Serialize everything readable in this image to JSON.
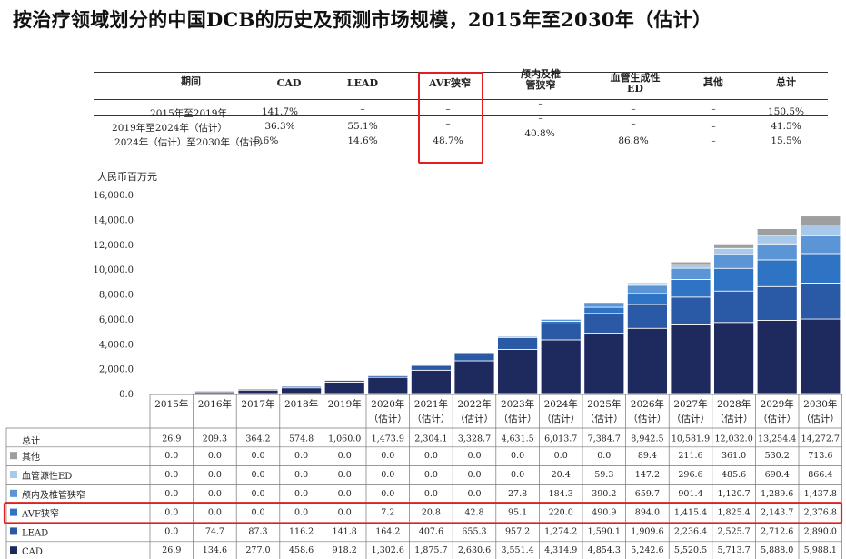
{
  "title": "按治疗领域划分的中国DCB的历史及预测市场规模，2015年至2030年（估计）",
  "cagr_table": {
    "header": [
      "期间",
      "CAD",
      "LEAD",
      "AVF狭窄",
      "颅内及椎管狭窄",
      "血管生成性ED",
      "其他",
      "总计"
    ],
    "rows": [
      {
        "period": "2015年至2019年",
        "values": [
          "141.7%",
          "–",
          "–",
          "–",
          "–",
          "–",
          "150.5%"
        ]
      },
      {
        "period": "2019年至2024年（估计）",
        "values": [
          "36.3%",
          "55.1%",
          "–",
          "–",
          "–",
          "–",
          "41.5%"
        ]
      },
      {
        "period": "2024年（估计）至2030年（估计）",
        "values": [
          "5.6%",
          "14.6%",
          "48.7%",
          "40.8%",
          "86.8%",
          "–",
          "15.5%"
        ]
      }
    ]
  },
  "colors": {
    "CAD": "#1e2a5e",
    "LEAD": "#2a5aa6",
    "AVF": "#2f73c4",
    "intracranial": "#5b95d6",
    "ED": "#a9c9ea",
    "other": "#9e9e9e",
    "highlight": "#e02020"
  },
  "chart_data": {
    "type": "bar",
    "stacked": true,
    "title": "",
    "ylabel": "人民币百万元",
    "ylim": [
      0,
      16000
    ],
    "yticks": [
      "0.0",
      "2,000.0",
      "4,000.0",
      "6,000.0",
      "8,000.0",
      "10,000.0",
      "12,000.0",
      "14,000.0",
      "16,000.0"
    ],
    "ytick_values": [
      0,
      2000,
      4000,
      6000,
      8000,
      10000,
      12000,
      14000,
      16000
    ],
    "categories": [
      "2015年",
      "2016年",
      "2017年",
      "2018年",
      "2019年",
      "2020年",
      "2021年",
      "2022年",
      "2023年",
      "2024年",
      "2025年",
      "2026年",
      "2027年",
      "2028年",
      "2029年",
      "2030年"
    ],
    "category_sub": [
      "",
      "",
      "",
      "",
      "",
      "（估计）",
      "（估计）",
      "（估计）",
      "（估计）",
      "（估计）",
      "（估计）",
      "（估计）",
      "（估计）",
      "（估计）",
      "（估计）",
      "（估计）"
    ],
    "totals_label": "总计",
    "totals": [
      "26.9",
      "209.3",
      "364.2",
      "574.8",
      "1,060.0",
      "1,473.9",
      "2,304.1",
      "3,328.7",
      "4,631.5",
      "6,013.7",
      "7,384.7",
      "8,942.5",
      "10,581.9",
      "12,032.0",
      "13,254.4",
      "14,272.7"
    ],
    "series": [
      {
        "name": "其他",
        "key": "other",
        "values": [
          0.0,
          0.0,
          0.0,
          0.0,
          0.0,
          0.0,
          0.0,
          0.0,
          0.0,
          0.0,
          0.0,
          89.4,
          211.6,
          361.0,
          530.2,
          713.6
        ],
        "labels": [
          "0.0",
          "0.0",
          "0.0",
          "0.0",
          "0.0",
          "0.0",
          "0.0",
          "0.0",
          "0.0",
          "0.0",
          "0.0",
          "89.4",
          "211.6",
          "361.0",
          "530.2",
          "713.6"
        ]
      },
      {
        "name": "血管源性ED",
        "key": "ED",
        "values": [
          0.0,
          0.0,
          0.0,
          0.0,
          0.0,
          0.0,
          0.0,
          0.0,
          0.0,
          20.4,
          59.3,
          147.2,
          296.6,
          485.6,
          690.4,
          866.4
        ],
        "labels": [
          "0.0",
          "0.0",
          "0.0",
          "0.0",
          "0.0",
          "0.0",
          "0.0",
          "0.0",
          "0.0",
          "20.4",
          "59.3",
          "147.2",
          "296.6",
          "485.6",
          "690.4",
          "866.4"
        ]
      },
      {
        "name": "颅内及椎管狭窄",
        "key": "intracranial",
        "values": [
          0.0,
          0.0,
          0.0,
          0.0,
          0.0,
          0.0,
          0.0,
          0.0,
          27.8,
          184.3,
          390.2,
          659.7,
          901.4,
          1120.7,
          1289.6,
          1437.8
        ],
        "labels": [
          "0.0",
          "0.0",
          "0.0",
          "0.0",
          "0.0",
          "0.0",
          "0.0",
          "0.0",
          "27.8",
          "184.3",
          "390.2",
          "659.7",
          "901.4",
          "1,120.7",
          "1,289.6",
          "1,437.8"
        ]
      },
      {
        "name": "AVF狭窄",
        "key": "AVF",
        "values": [
          0.0,
          0.0,
          0.0,
          0.0,
          0.0,
          7.2,
          20.8,
          42.8,
          95.1,
          220.0,
          490.9,
          894.0,
          1415.4,
          1825.4,
          2143.7,
          2376.8
        ],
        "labels": [
          "0.0",
          "0.0",
          "0.0",
          "0.0",
          "0.0",
          "7.2",
          "20.8",
          "42.8",
          "95.1",
          "220.0",
          "490.9",
          "894.0",
          "1,415.4",
          "1,825.4",
          "2,143.7",
          "2,376.8"
        ]
      },
      {
        "name": "LEAD",
        "key": "LEAD",
        "values": [
          0.0,
          74.7,
          87.3,
          116.2,
          141.8,
          164.2,
          407.6,
          655.3,
          957.2,
          1274.2,
          1590.1,
          1909.6,
          2236.4,
          2525.7,
          2712.6,
          2890.0
        ],
        "labels": [
          "0.0",
          "74.7",
          "87.3",
          "116.2",
          "141.8",
          "164.2",
          "407.6",
          "655.3",
          "957.2",
          "1,274.2",
          "1,590.1",
          "1,909.6",
          "2,236.4",
          "2,525.7",
          "2,712.6",
          "2,890.0"
        ]
      },
      {
        "name": "CAD",
        "key": "CAD",
        "values": [
          26.9,
          134.6,
          277.0,
          458.6,
          918.2,
          1302.6,
          1875.7,
          2630.6,
          3551.4,
          4314.9,
          4854.3,
          5242.6,
          5520.5,
          5713.7,
          5888.0,
          5988.1
        ],
        "labels": [
          "26.9",
          "134.6",
          "277.0",
          "458.6",
          "918.2",
          "1,302.6",
          "1,875.7",
          "2,630.6",
          "3,551.4",
          "4,314.9",
          "4,854.3",
          "5,242.6",
          "5,520.5",
          "5,713.7",
          "5,888.0",
          "5,988.1"
        ]
      }
    ]
  }
}
